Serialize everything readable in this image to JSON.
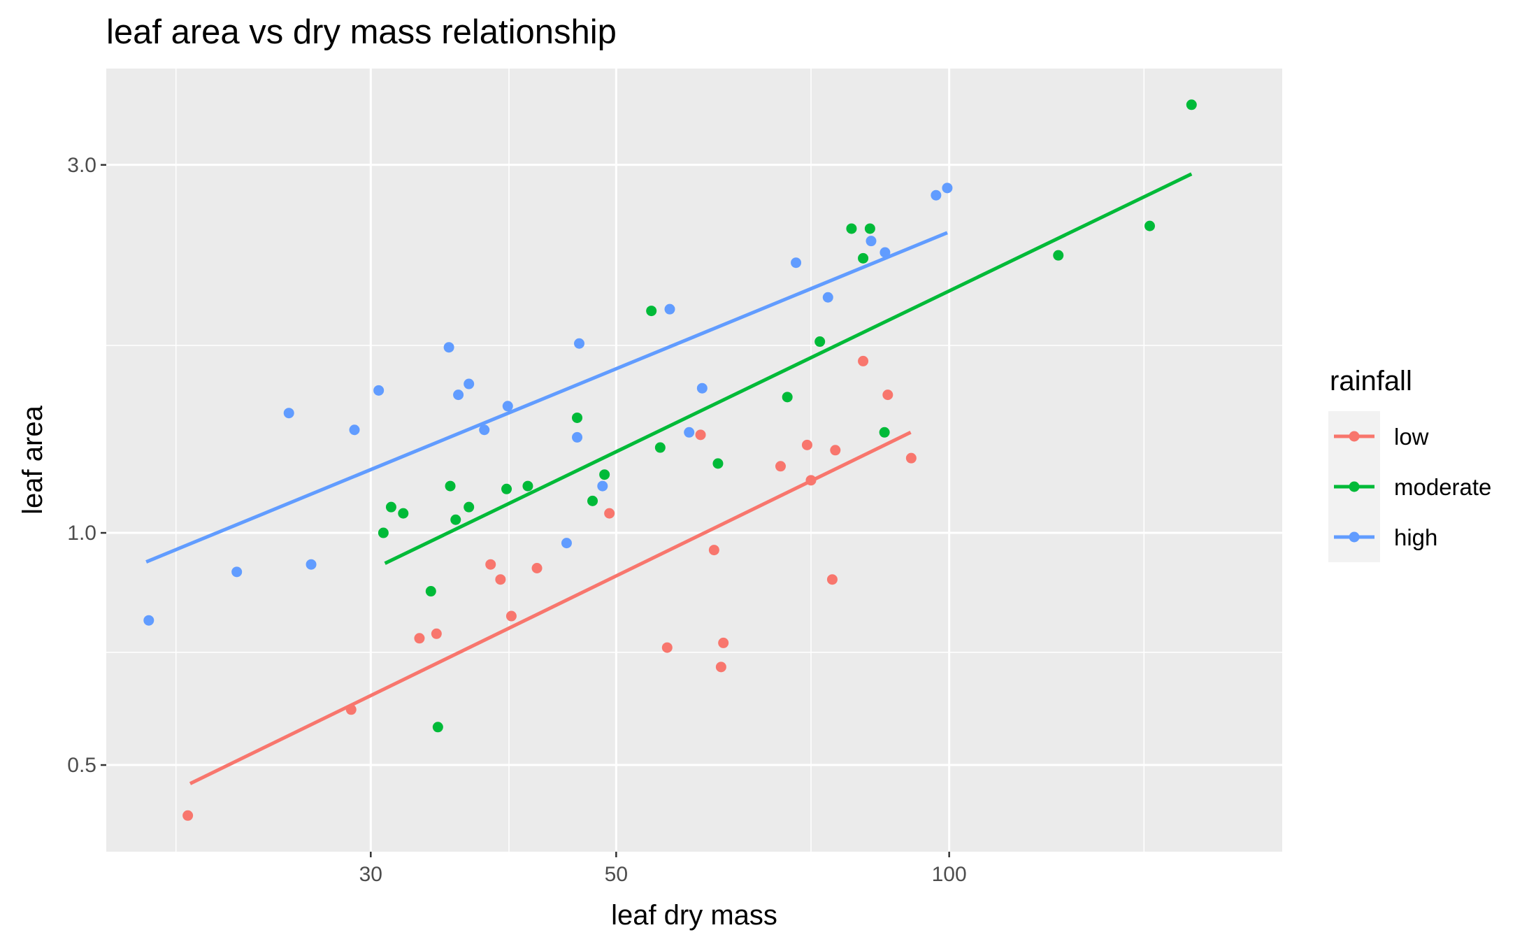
{
  "chart_data": {
    "type": "scatter",
    "title": "leaf area vs dry mass relationship",
    "xlabel": "leaf dry mass",
    "ylabel": "leaf area",
    "x_scale": "log10",
    "y_scale": "log10",
    "xlim": [
      17.3,
      200
    ],
    "ylim": [
      0.386,
      4.0
    ],
    "x_ticks": [
      {
        "value": 30,
        "label": "30"
      },
      {
        "value": 50,
        "label": "50"
      },
      {
        "value": 100,
        "label": "100"
      }
    ],
    "y_ticks": [
      {
        "value": 0.5,
        "label": "0.5"
      },
      {
        "value": 1.0,
        "label": "1.0"
      },
      {
        "value": 3.0,
        "label": "3.0"
      }
    ],
    "x_minor_ticks": [
      20,
      40,
      75,
      150
    ],
    "y_minor_ticks": [
      0.7,
      1.75
    ],
    "grid": true,
    "legend": {
      "title": "rainfall",
      "position": "right"
    },
    "series": [
      {
        "name": "low",
        "color": "#F8766D",
        "points": [
          [
            20.5,
            0.43
          ],
          [
            28.8,
            0.59
          ],
          [
            33.2,
            0.73
          ],
          [
            34.4,
            0.74
          ],
          [
            38.5,
            0.91
          ],
          [
            39.3,
            0.87
          ],
          [
            40.2,
            0.78
          ],
          [
            42.4,
            0.9
          ],
          [
            49.3,
            1.06
          ],
          [
            55.6,
            0.71
          ],
          [
            59.6,
            1.34
          ],
          [
            61.3,
            0.95
          ],
          [
            62.5,
            0.72
          ],
          [
            62.2,
            0.67
          ],
          [
            70.4,
            1.22
          ],
          [
            74.4,
            1.3
          ],
          [
            75.0,
            1.17
          ],
          [
            78.4,
            0.87
          ],
          [
            78.9,
            1.28
          ],
          [
            83.6,
            1.67
          ],
          [
            88.0,
            1.51
          ],
          [
            92.4,
            1.25
          ]
        ],
        "fit": [
          [
            20.6,
            0.473
          ],
          [
            92.3,
            1.35
          ]
        ]
      },
      {
        "name": "moderate",
        "color": "#00BA38",
        "points": [
          [
            30.8,
            1.0
          ],
          [
            31.3,
            1.08
          ],
          [
            32.1,
            1.06
          ],
          [
            34.0,
            0.84
          ],
          [
            34.5,
            0.56
          ],
          [
            35.4,
            1.15
          ],
          [
            35.8,
            1.04
          ],
          [
            36.8,
            1.08
          ],
          [
            39.8,
            1.14
          ],
          [
            41.6,
            1.15
          ],
          [
            46.1,
            1.41
          ],
          [
            47.6,
            1.1
          ],
          [
            48.8,
            1.19
          ],
          [
            53.8,
            1.94
          ],
          [
            54.8,
            1.29
          ],
          [
            61.8,
            1.23
          ],
          [
            71.4,
            1.5
          ],
          [
            76.4,
            1.77
          ],
          [
            81.6,
            2.48
          ],
          [
            83.6,
            2.27
          ],
          [
            84.8,
            2.48
          ],
          [
            87.4,
            1.35
          ],
          [
            125.5,
            2.29
          ],
          [
            151.8,
            2.5
          ],
          [
            165.6,
            3.59
          ]
        ],
        "fit": [
          [
            30.9,
            0.913
          ],
          [
            165.6,
            2.92
          ]
        ]
      },
      {
        "name": "high",
        "color": "#619CFF",
        "points": [
          [
            18.9,
            0.77
          ],
          [
            22.7,
            0.89
          ],
          [
            25.3,
            1.43
          ],
          [
            26.5,
            0.91
          ],
          [
            29.0,
            1.36
          ],
          [
            30.5,
            1.53
          ],
          [
            35.3,
            1.74
          ],
          [
            36.0,
            1.51
          ],
          [
            36.8,
            1.56
          ],
          [
            38.0,
            1.36
          ],
          [
            39.9,
            1.46
          ],
          [
            45.1,
            0.97
          ],
          [
            46.1,
            1.33
          ],
          [
            46.3,
            1.76
          ],
          [
            48.6,
            1.15
          ],
          [
            55.9,
            1.95
          ],
          [
            58.2,
            1.35
          ],
          [
            59.8,
            1.54
          ],
          [
            72.7,
            2.24
          ],
          [
            77.7,
            2.02
          ],
          [
            85.0,
            2.39
          ],
          [
            87.5,
            2.31
          ],
          [
            97.3,
            2.74
          ],
          [
            99.6,
            2.8
          ]
        ],
        "fit": [
          [
            18.8,
            0.917
          ],
          [
            99.6,
            2.45
          ]
        ]
      }
    ]
  }
}
